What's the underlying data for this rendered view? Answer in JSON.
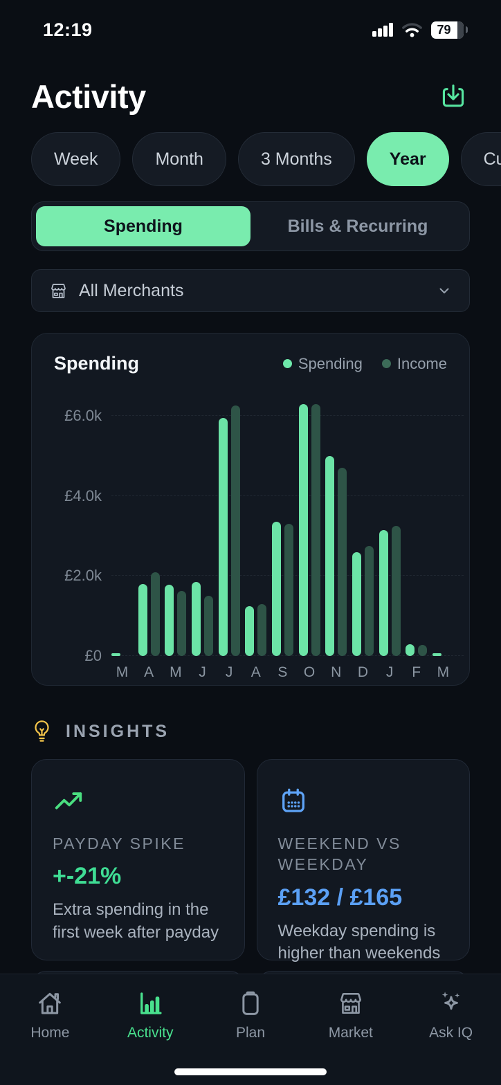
{
  "status_bar": {
    "time": "12:19",
    "battery_percent": "79"
  },
  "header": {
    "title": "Activity",
    "download_icon": "download-icon"
  },
  "filters": {
    "options": [
      {
        "label": "Week",
        "selected": false
      },
      {
        "label": "Month",
        "selected": false
      },
      {
        "label": "3 Months",
        "selected": false
      },
      {
        "label": "Year",
        "selected": true
      },
      {
        "label": "Custom",
        "selected": false
      }
    ]
  },
  "tabs": {
    "options": [
      {
        "label": "Spending",
        "selected": true
      },
      {
        "label": "Bills & Recurring",
        "selected": false
      }
    ]
  },
  "merchant_filter": {
    "label": "All Merchants",
    "icon": "storefront-icon",
    "chevron": "chevron-down-icon"
  },
  "chart_card": {
    "title": "Spending",
    "legend": [
      {
        "label": "Spending",
        "color": "#6ee9ab"
      },
      {
        "label": "Income",
        "color": "#3c6b58"
      }
    ]
  },
  "chart_data": {
    "type": "bar",
    "title": "Spending",
    "categories": [
      "M",
      "A",
      "M",
      "J",
      "J",
      "A",
      "S",
      "O",
      "N",
      "D",
      "J",
      "F",
      "M"
    ],
    "series": [
      {
        "name": "Spending",
        "color": "#6ce4a7",
        "values": [
          50,
          1800,
          1780,
          1850,
          5950,
          1250,
          3350,
          6300,
          5000,
          2600,
          3150,
          300,
          50
        ]
      },
      {
        "name": "Income",
        "color": "#2e5447",
        "values": [
          0,
          2100,
          1620,
          1500,
          6250,
          1300,
          3300,
          6300,
          4700,
          2750,
          3250,
          270,
          0
        ]
      }
    ],
    "yticks": [
      {
        "label": "£6.0k",
        "value": 6000
      },
      {
        "label": "£4.0k",
        "value": 4000
      },
      {
        "label": "£2.0k",
        "value": 2000
      },
      {
        "label": "£0",
        "value": 0
      }
    ],
    "ylim": [
      0,
      6500
    ],
    "grid": "dashed-horizontal",
    "legend_position": "top-right"
  },
  "insights": {
    "title": "INSIGHTS",
    "bulb_icon": "lightbulb-icon",
    "cards": [
      {
        "icon": "trend-up-icon",
        "accent": "#4ade80",
        "label": "PAYDAY SPIKE",
        "value": "+-21%",
        "value_color": "#3fdd94",
        "description": "Extra spending in the first week after payday"
      },
      {
        "icon": "calendar-icon",
        "accent": "#5ea3f7",
        "label": "WEEKEND VS WEEKDAY",
        "value": "£132 / £165",
        "value_color": "#5ba0f5",
        "description": "Weekday spending is higher than weekends"
      }
    ]
  },
  "bottom_nav": {
    "active_color": "#49e18e",
    "items": [
      {
        "label": "Home",
        "icon": "home-icon",
        "active": false
      },
      {
        "label": "Activity",
        "icon": "bar-chart-icon",
        "active": true
      },
      {
        "label": "Plan",
        "icon": "clipboard-icon",
        "active": false
      },
      {
        "label": "Market",
        "icon": "storefront-icon",
        "active": false
      },
      {
        "label": "Ask IQ",
        "icon": "sparkles-icon",
        "active": false
      }
    ]
  }
}
